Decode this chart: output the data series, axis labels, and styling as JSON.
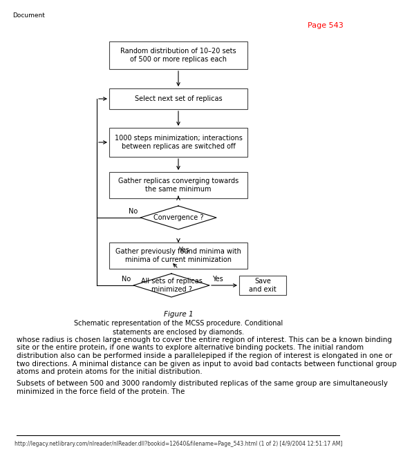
{
  "bg_color": "#ffffff",
  "page_label": "Page 543",
  "doc_label": "Document",
  "footer_url": "http://legacy.netlibrary.com/nlreader/nlReader.dll?bookid=12640&filename=Page_543.html (1 of 2) [4/9/2004 12:51:17 AM]",
  "figure_caption_line1": "Figure 1",
  "figure_caption_line2": "Schematic representation of the MCSS procedure. Conditional",
  "figure_caption_line3": "statements are enclosed by diamonds.",
  "para1": "whose radius is chosen large enough to cover the entire region of interest. This can be a known binding site or the entire protein, if one wants to explore alternative binding pockets. The initial random distribution also can be performed inside a parallelepiped if the region of interest is elongated in one or two directions. A minimal distance can be given as input to avoid bad contacts between functional group atoms and protein atoms for the initial distribution.",
  "para2": "Subsets of between 500 and 3000 randomly distributed replicas of the same group are simultaneously minimized in the force field of the protein. The",
  "box0_label": "Random distribution of 10–20 sets\nof 500 or more replicas each",
  "box1_label": "Select next set of replicas",
  "box2_label": "1000 steps minimization; interactions\nbetween replicas are switched off",
  "box3_label": "Gather replicas converging towards\nthe same minimum",
  "box4_label": "Convergence ?",
  "box5_label": "Gather previously found minima with\nminima of current minimization",
  "box6_label": "All sets of replicas\nminimized ?",
  "box7_label": "Save\nand exit",
  "flow_fontsize": 7.0,
  "caption_fontsize": 7.5,
  "text_fontsize": 7.5
}
